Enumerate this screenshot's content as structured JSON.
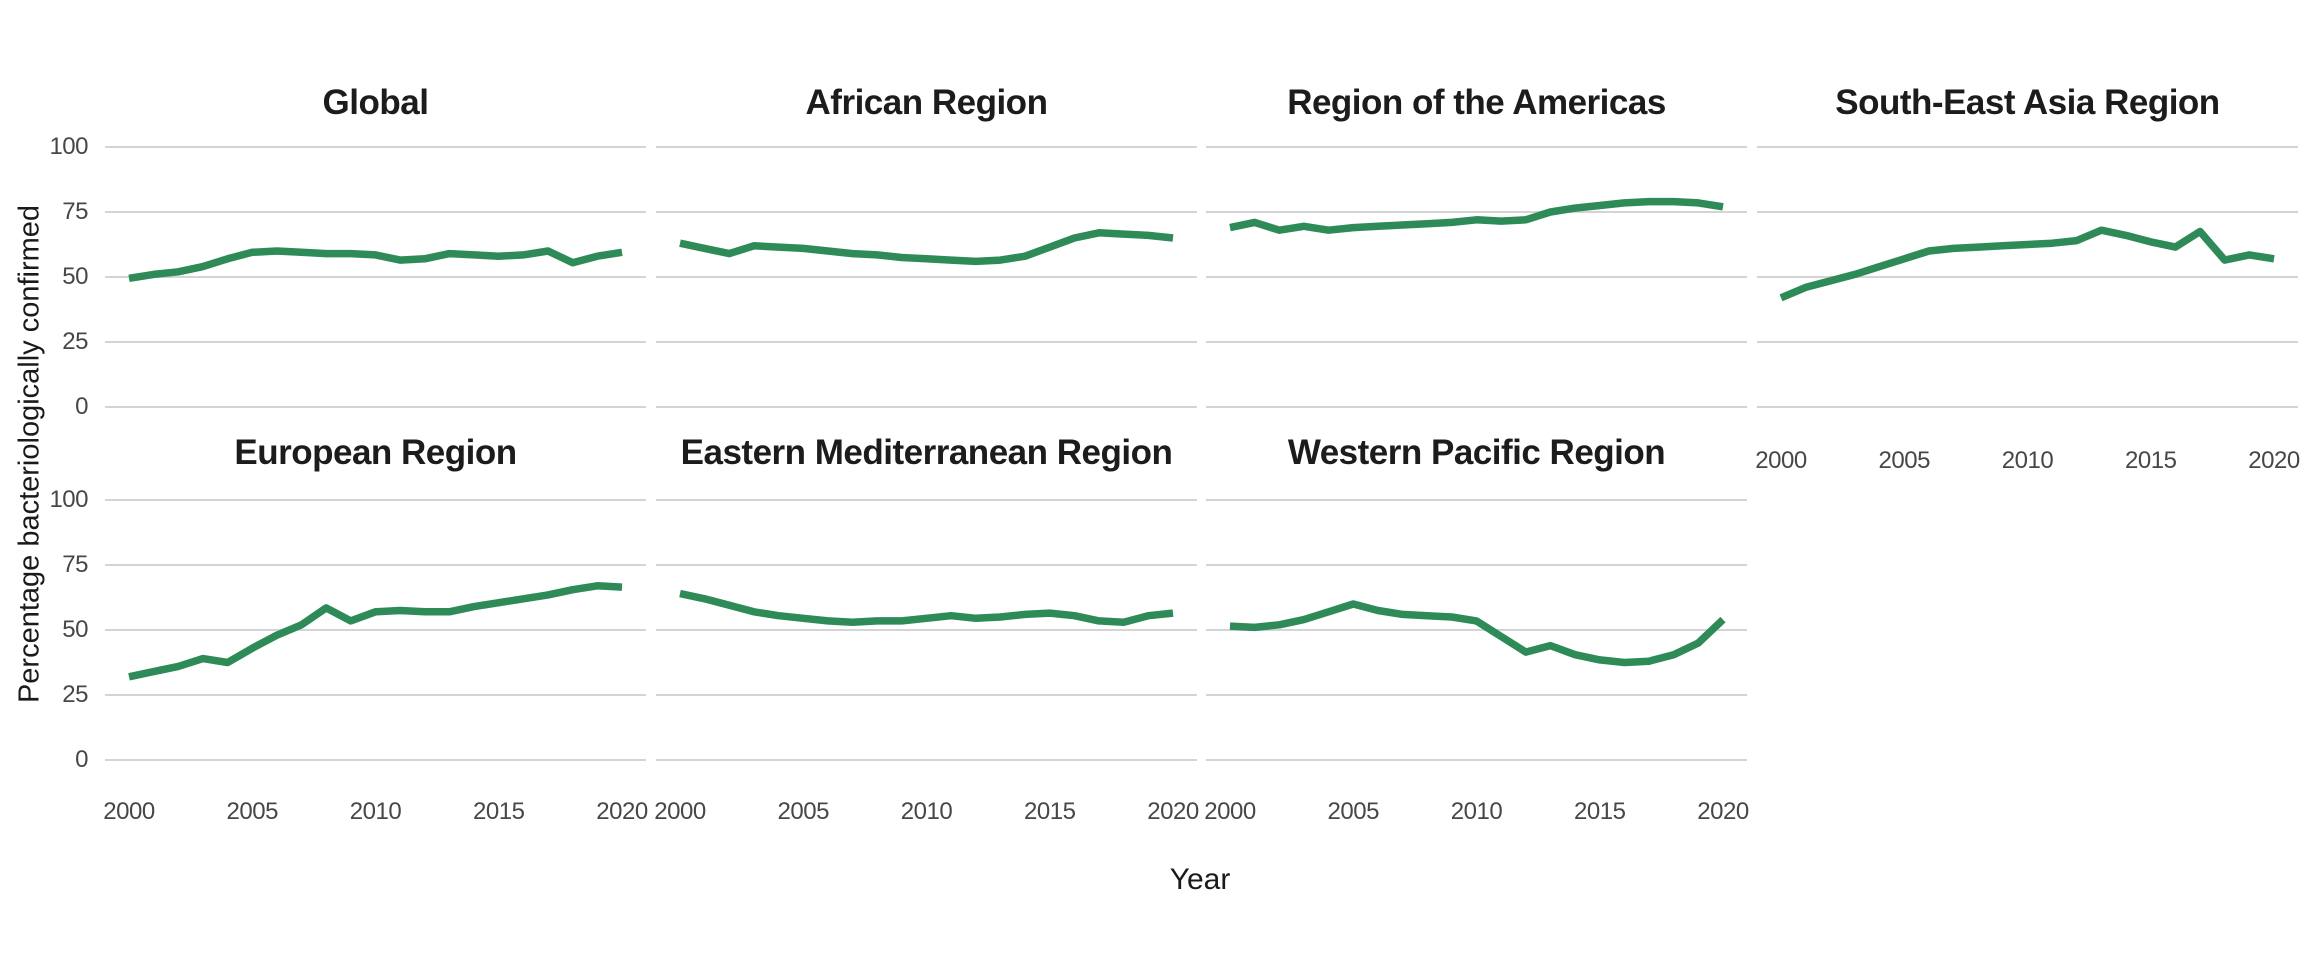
{
  "figure": {
    "y_axis_label": "Percentage bacteriologically confirmed",
    "x_axis_label": "Year",
    "background_color": "#ffffff",
    "gridline_color": "#d4d4d4",
    "line_color": "#2e8b57",
    "title_color": "#1c1c1c",
    "tick_text_color": "#474747",
    "y_tick_labels": [
      "100",
      "75",
      "50",
      "25",
      "0"
    ],
    "x_tick_labels": [
      "2000",
      "2005",
      "2010",
      "2015",
      "2020"
    ]
  },
  "chart_data": {
    "type": "line",
    "title": "",
    "xlabel": "Year",
    "ylabel": "Percentage bacteriologically confirmed",
    "x": [
      2000,
      2001,
      2002,
      2003,
      2004,
      2005,
      2006,
      2007,
      2008,
      2009,
      2010,
      2011,
      2012,
      2013,
      2014,
      2015,
      2016,
      2017,
      2018,
      2019,
      2020
    ],
    "xlim": [
      2000,
      2020
    ],
    "ylim": [
      0,
      100
    ],
    "x_tick_values": [
      2000,
      2005,
      2010,
      2015,
      2020
    ],
    "y_tick_values": [
      100,
      75,
      50,
      25,
      0
    ],
    "grid": "horizontal gridlines only, light gray, no axis lines, no legend",
    "layout": "7 facets in 2 rows x 4 columns, bottom-right cell empty; single green line per facet",
    "line_color": "#2e8b57",
    "series": [
      {
        "name": "Global",
        "values": [
          49.5,
          51,
          52,
          54,
          57,
          59.5,
          60,
          59.5,
          59,
          59,
          58.5,
          56.5,
          57,
          59,
          58.5,
          58,
          58.5,
          60,
          55.5,
          58,
          59.5
        ]
      },
      {
        "name": "African Region",
        "values": [
          63,
          61,
          59,
          62,
          61.5,
          61,
          60,
          59,
          58.5,
          57.5,
          57,
          56.5,
          56,
          56.5,
          58,
          61.5,
          65,
          67,
          66.5,
          66,
          65
        ]
      },
      {
        "name": "Region of the Americas",
        "values": [
          69,
          71,
          68,
          69.5,
          68,
          69,
          69.5,
          70,
          70.5,
          71,
          72,
          71.5,
          72,
          75,
          76.5,
          77.5,
          78.5,
          79,
          79,
          78.5,
          77
        ]
      },
      {
        "name": "South-East Asia Region",
        "values": [
          42,
          46,
          48.5,
          51,
          54,
          57,
          60,
          61,
          61.5,
          62,
          62.5,
          63,
          64,
          68,
          66,
          63.5,
          61.5,
          67.5,
          56.5,
          58.5,
          57
        ]
      },
      {
        "name": "European Region",
        "values": [
          32,
          34,
          36,
          39,
          37.5,
          43,
          48,
          52,
          58.5,
          53.5,
          57,
          57.5,
          57,
          57,
          59,
          60.5,
          62,
          63.5,
          65.5,
          67,
          66.5
        ]
      },
      {
        "name": "Eastern Mediterranean Region",
        "values": [
          64,
          62,
          59.5,
          57,
          55.5,
          54.5,
          53.5,
          53,
          53.5,
          53.5,
          54.5,
          55.5,
          54.5,
          55,
          56,
          56.5,
          55.5,
          53.5,
          53,
          55.5,
          56.5
        ]
      },
      {
        "name": "Western Pacific Region",
        "values": [
          51.5,
          51,
          52,
          54,
          57,
          60,
          57.5,
          56,
          55.5,
          55,
          53.5,
          47.5,
          41.5,
          44,
          40.5,
          38.5,
          37.5,
          38,
          40.5,
          45,
          54
        ]
      }
    ]
  }
}
